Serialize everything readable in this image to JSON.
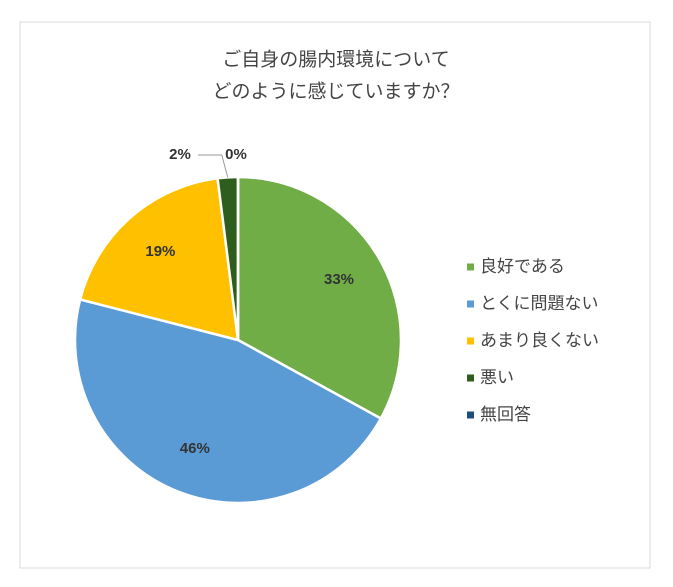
{
  "chart_data": {
    "type": "pie",
    "title": [
      "ご自身の腸内環境について",
      "どのように感じていますか？"
    ],
    "categories": [
      "良好である",
      "とくに問題ない",
      "あまり良くない",
      "悪い",
      "無回答"
    ],
    "values": [
      33,
      46,
      19,
      2,
      0
    ],
    "value_labels": [
      "33%",
      "46%",
      "19%",
      "2%",
      "0%"
    ],
    "colors": [
      "#70ad47",
      "#5b9bd5",
      "#ffc000",
      "#2e5e1e",
      "#1f4e79"
    ],
    "legend": "right"
  }
}
